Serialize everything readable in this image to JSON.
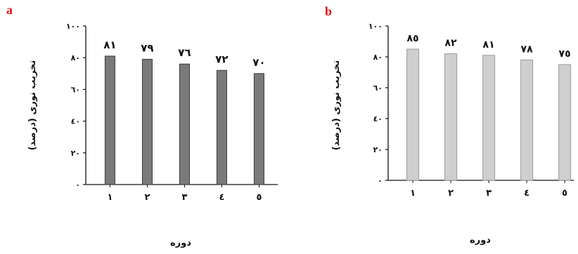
{
  "chart_data": [
    {
      "panel_label": "a",
      "type": "bar",
      "categories": [
        "۱",
        "۲",
        "۳",
        "٤",
        "٥"
      ],
      "values": [
        81,
        79,
        76,
        72,
        70
      ],
      "value_labels": [
        "۸۱",
        "۷۹",
        "۷٦",
        "۷۲",
        "۷۰"
      ],
      "ylabel": "تخریب نوری (درصد)",
      "xlabel": "دوره",
      "ylim": [
        0,
        100
      ],
      "yticks": [
        "۰",
        "۲۰",
        "٤۰",
        "٦۰",
        "۸۰",
        "۱۰۰"
      ],
      "bar_color": "#7a7a7a",
      "bar_border": "#3a3a3a"
    },
    {
      "panel_label": "b",
      "type": "bar",
      "categories": [
        "۱",
        "۲",
        "۳",
        "٤",
        "٥"
      ],
      "values": [
        85,
        82,
        81,
        78,
        75
      ],
      "value_labels": [
        "۸٥",
        "۸۲",
        "۸۱",
        "۷۸",
        "۷٥"
      ],
      "ylabel": "تخریب نوری (درصد)",
      "xlabel": "دوره",
      "ylim": [
        0,
        100
      ],
      "yticks": [
        "۰",
        "۲۰",
        "٤۰",
        "٦۰",
        "۸۰",
        "۱۰۰"
      ],
      "bar_color": "#cfcfcf",
      "bar_border": "#9a9a9a"
    }
  ]
}
